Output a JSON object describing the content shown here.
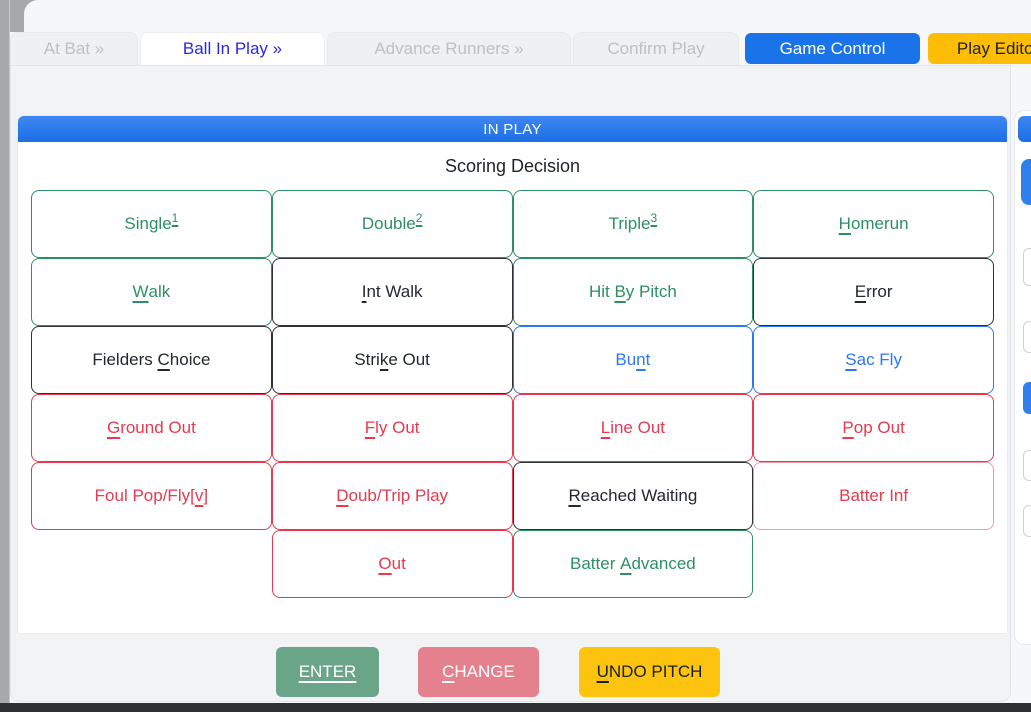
{
  "tabs": [
    {
      "label": "At Bat »",
      "state": "inactive"
    },
    {
      "label": "Ball In Play »",
      "state": "active"
    },
    {
      "label": "Advance Runners »",
      "state": "inactive"
    },
    {
      "label": "Confirm Play",
      "state": "inactive"
    },
    {
      "label": "Game Control",
      "state": "primary"
    },
    {
      "label": "Play Editor",
      "state": "warning"
    }
  ],
  "panel": {
    "header": "IN PLAY",
    "subtitle": "Scoring Decision"
  },
  "grid": {
    "rows": [
      [
        {
          "pre": "Single",
          "sup": "1",
          "variant": "green"
        },
        {
          "pre": "Double",
          "sup": "2",
          "variant": "green"
        },
        {
          "pre": "Triple",
          "sup": "3",
          "variant": "green"
        },
        {
          "key": "H",
          "post": "omerun",
          "variant": "green"
        }
      ],
      [
        {
          "key": "W",
          "post": "alk",
          "variant": "green"
        },
        {
          "key": "I",
          "post": "nt Walk",
          "variant": "dark"
        },
        {
          "pre": "Hit ",
          "key": "B",
          "post": "y Pitch",
          "variant": "green"
        },
        {
          "key": "E",
          "post": "rror",
          "variant": "dark"
        }
      ],
      [
        {
          "pre": "Fielders ",
          "key": "C",
          "post": "hoice",
          "variant": "dark"
        },
        {
          "pre": "Stri",
          "key": "k",
          "post": "e Out",
          "variant": "dark"
        },
        {
          "pre": "Bu",
          "key": "n",
          "post": "t",
          "variant": "blue"
        },
        {
          "key": "S",
          "post": "ac Fly",
          "variant": "blue"
        }
      ],
      [
        {
          "key": "G",
          "post": "round Out",
          "variant": "red"
        },
        {
          "key": "F",
          "post": "ly Out",
          "variant": "red"
        },
        {
          "key": "L",
          "post": "ine Out",
          "variant": "red"
        },
        {
          "key": "P",
          "post": "op Out",
          "variant": "red"
        }
      ],
      [
        {
          "pre": "Foul Pop/Fly[",
          "key": "v",
          "post": "]",
          "variant": "red"
        },
        {
          "key": "D",
          "post": "oub/Trip Play",
          "variant": "red"
        },
        {
          "key": "R",
          "post": "eached Waiting",
          "variant": "dark"
        },
        {
          "pre": "Batter Inf",
          "variant": "red-soft"
        }
      ],
      [
        {
          "variant": "empty"
        },
        {
          "key": "O",
          "post": "ut",
          "variant": "red"
        },
        {
          "pre": "Batter ",
          "key": "A",
          "post": "dvanced",
          "variant": "green"
        },
        {
          "variant": "empty"
        }
      ]
    ]
  },
  "footer_buttons": [
    {
      "key": "ENTER",
      "variant": "success"
    },
    {
      "key": "C",
      "post": "HANGE",
      "variant": "danger"
    },
    {
      "key": "U",
      "post": "NDO PITCH",
      "variant": "warning"
    }
  ],
  "colors": {
    "accent_blue": "#1a73e8",
    "header_blue": "#2577ee",
    "active_tab_text": "#2b27e0",
    "green": "#2e8f63",
    "red": "#e8394e",
    "blue": "#2b78f2",
    "dark": "#23272e",
    "gold": "#fcbd02",
    "enter_bg": "#6aa489",
    "change_bg": "#e5808f",
    "undo_bg": "#fcc40e"
  }
}
